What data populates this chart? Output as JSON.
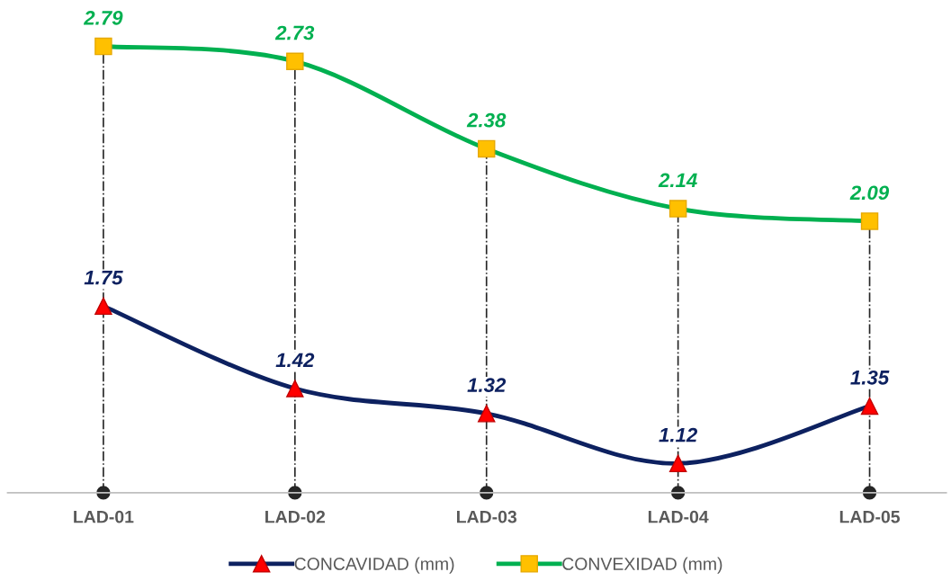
{
  "chart_data": {
    "type": "line",
    "categories": [
      "LAD-01",
      "LAD-02",
      "LAD-03",
      "LAD-04",
      "LAD-05"
    ],
    "series": [
      {
        "name": "CONCAVIDAD (mm)",
        "color": "#0d2160",
        "colors": [
          "#ff0000",
          "#ff0000",
          "#ff0000",
          "#ff0000",
          "#ff0000"
        ],
        "marker": "triangle",
        "values": [
          1.75,
          1.42,
          1.32,
          1.12,
          1.35
        ]
      },
      {
        "name": "CONVEXIDAD (mm)",
        "color": "#00b050",
        "colors": [
          "#ffc000",
          "#ffc000",
          "#ffc000",
          "#ffc000",
          "#ffc000"
        ],
        "marker": "square",
        "values": [
          2.79,
          2.73,
          2.38,
          2.14,
          2.09
        ]
      }
    ],
    "tick_labels": "x",
    "data_labels": true,
    "grid": false,
    "legend": "bottom",
    "line_style": "solid",
    "ref_lines": [
      {
        "axis": "x",
        "value": "LAD-01",
        "color": "#262626",
        "line_style": "dashdot"
      },
      {
        "axis": "x",
        "value": "LAD-02",
        "color": "#262626",
        "line_style": "dashdot"
      },
      {
        "axis": "x",
        "value": "LAD-03",
        "color": "#262626",
        "line_style": "dashdot"
      },
      {
        "axis": "x",
        "value": "LAD-04",
        "color": "#262626",
        "line_style": "dashdot"
      },
      {
        "axis": "x",
        "value": "LAD-05",
        "color": "#262626",
        "line_style": "dashdot"
      }
    ]
  }
}
